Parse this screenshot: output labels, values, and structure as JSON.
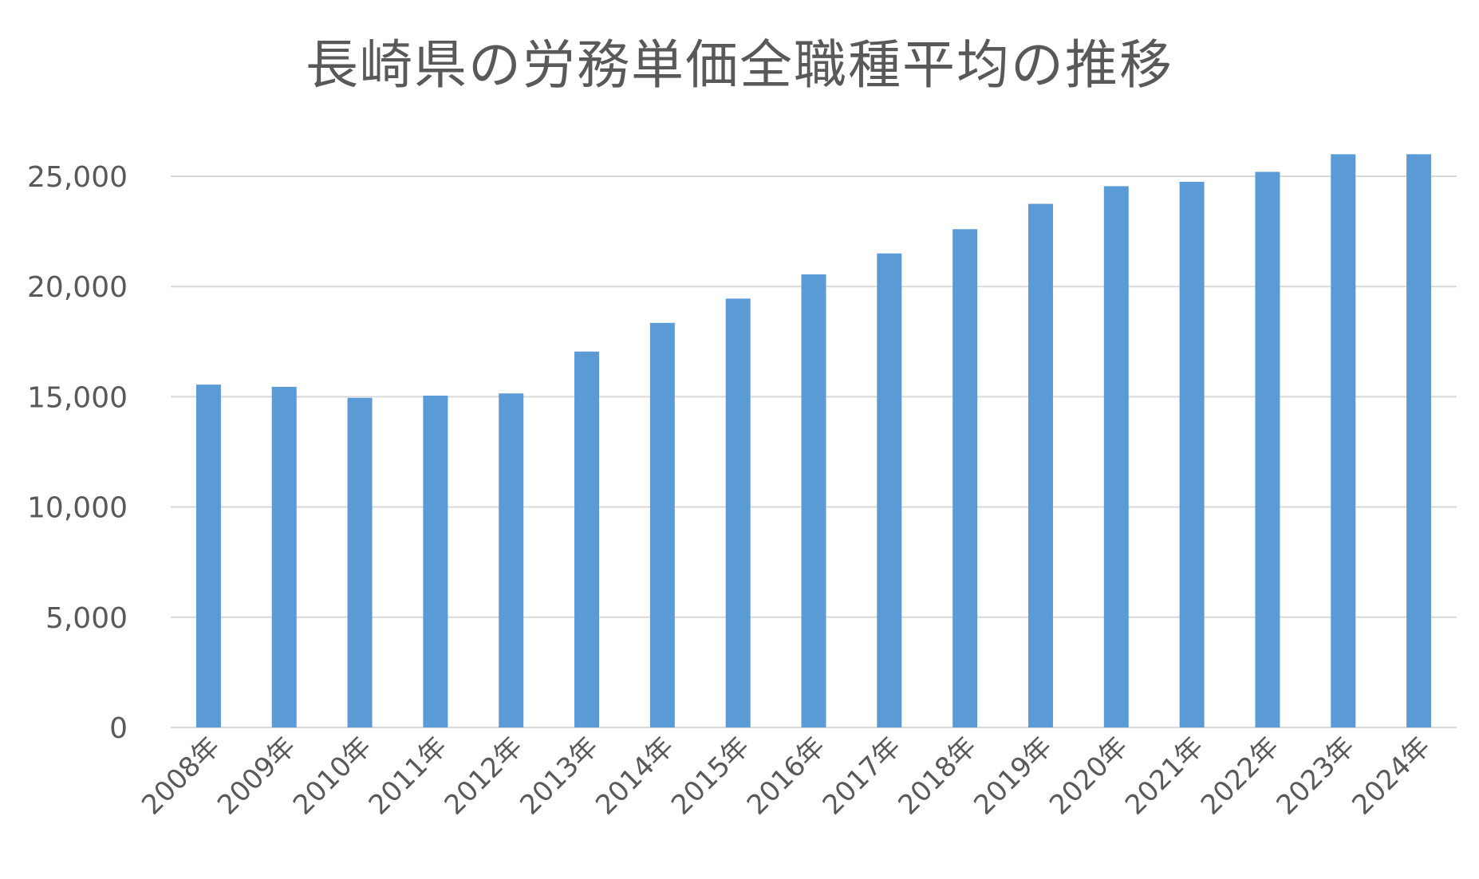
{
  "chart_data": {
    "type": "bar",
    "title": "長崎県の労務単価全職種平均の推移",
    "xlabel": "",
    "ylabel": "",
    "categories": [
      "2008年",
      "2009年",
      "2010年",
      "2011年",
      "2012年",
      "2013年",
      "2014年",
      "2015年",
      "2016年",
      "2017年",
      "2018年",
      "2019年",
      "2020年",
      "2021年",
      "2022年",
      "2023年",
      "2024年"
    ],
    "values": [
      15550,
      15450,
      14950,
      15050,
      15150,
      17050,
      18350,
      19450,
      20550,
      21500,
      22600,
      23750,
      24550,
      24750,
      25200,
      26000,
      26000
    ],
    "yticks": [
      "0",
      "5,000",
      "10,000",
      "15,000",
      "20,000",
      "25,000"
    ],
    "ytick_values": [
      0,
      5000,
      10000,
      15000,
      20000,
      25000
    ],
    "ylim": [
      0,
      26000
    ],
    "grid": true,
    "legend": "none",
    "colors": {
      "bar": "#5b9bd5",
      "grid": "#d9d9d9",
      "text": "#595959"
    }
  }
}
